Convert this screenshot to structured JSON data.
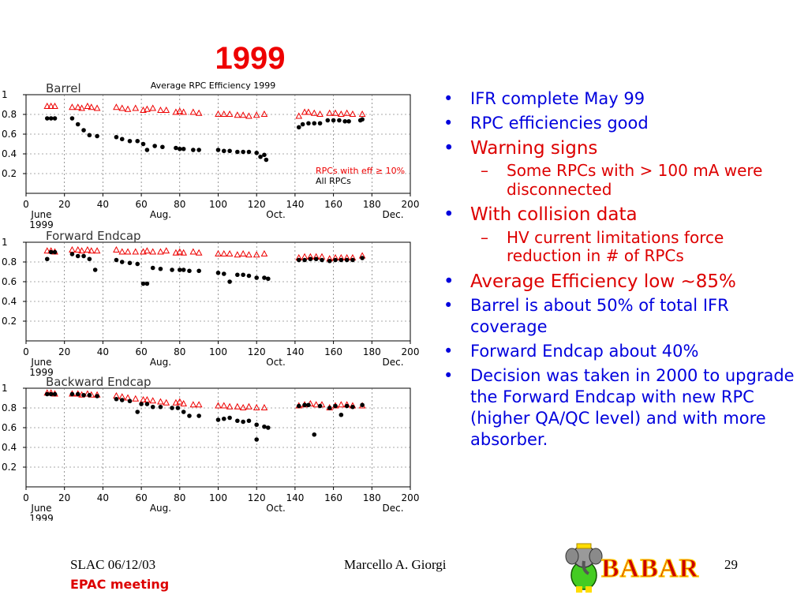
{
  "slide": {
    "title": "1999",
    "footer": {
      "left": "SLAC 06/12/03",
      "left2": "EPAC meeting",
      "center": "Marcello A. Giorgi",
      "page": "29"
    },
    "logo_text": "BABAR"
  },
  "bullets": [
    {
      "text": "IFR  complete May 99",
      "size": "b1",
      "color": "blue"
    },
    {
      "text": "RPC efficiencies good",
      "size": "b1",
      "color": "blue"
    },
    {
      "text": "Warning signs",
      "size": "b2",
      "color": "red",
      "subs": [
        "Some RPCs with > 100 mA were disconnected"
      ]
    },
    {
      "text": "With collision data",
      "size": "b2",
      "color": "red",
      "subs": [
        "HV current limitations force reduction in # of RPCs"
      ]
    },
    {
      "text": "Average Efficiency low ~85%",
      "size": "b2",
      "color": "red"
    },
    {
      "text": "Barrel is about 50% of total IFR coverage",
      "size": "b1",
      "color": "blue"
    },
    {
      "text": "Forward Endcap about 40%",
      "size": "b1",
      "color": "blue"
    },
    {
      "text": "Decision was taken in 2000 to upgrade the Forward Endcap with new RPC (higher QA/QC level) and with more absorber.",
      "size": "b1",
      "color": "blue"
    }
  ],
  "chart_data": [
    {
      "type": "scatter",
      "panel_label": "Barrel",
      "title": "Average RPC Efficiency 1999",
      "xlim": [
        0,
        200
      ],
      "ylim": [
        0,
        1
      ],
      "xticks": [
        0,
        20,
        40,
        60,
        80,
        100,
        120,
        140,
        160,
        180,
        200
      ],
      "yticks": [
        0.2,
        0.4,
        0.6,
        0.8,
        1
      ],
      "ytick_labels": [
        "0.2",
        "0.4",
        "0.6",
        "0.8",
        "1"
      ],
      "date_labels": [
        {
          "x": 8,
          "text": "June"
        },
        {
          "x": 8,
          "text": "1999",
          "row": 2
        },
        {
          "x": 70,
          "text": "Aug."
        },
        {
          "x": 130,
          "text": "Oct."
        },
        {
          "x": 191,
          "text": "Dec."
        }
      ],
      "legend": [
        "RPCs with eff ≥ 10%",
        "All RPCs"
      ],
      "series": [
        {
          "name": "RPCs with eff ≥ 10%",
          "marker": "triangle",
          "x": [
            11,
            13,
            15,
            24,
            27,
            29,
            32,
            34,
            37,
            47,
            50,
            53,
            57,
            61,
            63,
            66,
            70,
            73,
            78,
            80,
            82,
            87,
            90,
            100,
            103,
            106,
            110,
            113,
            116,
            120,
            124,
            142,
            145,
            147,
            150,
            153,
            158,
            161,
            164,
            167,
            170,
            175
          ],
          "y": [
            0.88,
            0.88,
            0.88,
            0.87,
            0.87,
            0.86,
            0.88,
            0.87,
            0.86,
            0.87,
            0.86,
            0.85,
            0.86,
            0.84,
            0.85,
            0.86,
            0.84,
            0.84,
            0.82,
            0.83,
            0.82,
            0.82,
            0.81,
            0.8,
            0.8,
            0.8,
            0.79,
            0.79,
            0.78,
            0.79,
            0.8,
            0.78,
            0.82,
            0.82,
            0.81,
            0.8,
            0.81,
            0.81,
            0.8,
            0.81,
            0.8,
            0.8
          ]
        },
        {
          "name": "All RPCs",
          "marker": "circle",
          "x": [
            11,
            13,
            15,
            24,
            27,
            30,
            33,
            37,
            47,
            50,
            54,
            58,
            61,
            63,
            67,
            71,
            78,
            80,
            82,
            87,
            90,
            100,
            103,
            106,
            110,
            113,
            116,
            120,
            122,
            124,
            125,
            142,
            144,
            147,
            150,
            153,
            157,
            160,
            163,
            166,
            168,
            174,
            175
          ],
          "y": [
            0.76,
            0.76,
            0.76,
            0.76,
            0.7,
            0.64,
            0.59,
            0.58,
            0.57,
            0.55,
            0.53,
            0.53,
            0.5,
            0.44,
            0.48,
            0.47,
            0.46,
            0.45,
            0.45,
            0.44,
            0.44,
            0.44,
            0.43,
            0.43,
            0.42,
            0.42,
            0.42,
            0.41,
            0.37,
            0.39,
            0.34,
            0.67,
            0.7,
            0.71,
            0.71,
            0.71,
            0.74,
            0.74,
            0.74,
            0.73,
            0.73,
            0.74,
            0.75
          ]
        }
      ]
    },
    {
      "type": "scatter",
      "panel_label": "Forward Endcap",
      "xlim": [
        0,
        200
      ],
      "ylim": [
        0,
        1
      ],
      "xticks": [
        0,
        20,
        40,
        60,
        80,
        100,
        120,
        140,
        160,
        180,
        200
      ],
      "yticks": [
        0.2,
        0.4,
        0.6,
        0.8,
        1
      ],
      "ytick_labels": [
        "0.2",
        "0.4",
        "0.6",
        "0.8",
        "1"
      ],
      "date_labels": [
        {
          "x": 8,
          "text": "June"
        },
        {
          "x": 8,
          "text": "1999",
          "row": 2
        },
        {
          "x": 70,
          "text": "Aug."
        },
        {
          "x": 130,
          "text": "Oct."
        },
        {
          "x": 191,
          "text": "Dec."
        }
      ],
      "series": [
        {
          "name": "RPCs with eff ≥ 10%",
          "marker": "triangle",
          "x": [
            11,
            13,
            15,
            24,
            27,
            29,
            32,
            34,
            37,
            47,
            50,
            53,
            57,
            61,
            63,
            66,
            70,
            73,
            78,
            80,
            82,
            87,
            90,
            100,
            103,
            106,
            110,
            113,
            116,
            120,
            124,
            142,
            145,
            148,
            151,
            154,
            158,
            161,
            164,
            167,
            170,
            175
          ],
          "y": [
            0.91,
            0.91,
            0.9,
            0.92,
            0.92,
            0.91,
            0.92,
            0.91,
            0.91,
            0.92,
            0.9,
            0.9,
            0.9,
            0.9,
            0.91,
            0.9,
            0.9,
            0.91,
            0.89,
            0.9,
            0.89,
            0.9,
            0.89,
            0.88,
            0.88,
            0.88,
            0.87,
            0.88,
            0.87,
            0.87,
            0.88,
            0.84,
            0.85,
            0.85,
            0.85,
            0.85,
            0.83,
            0.84,
            0.84,
            0.84,
            0.84,
            0.86
          ]
        },
        {
          "name": "All RPCs",
          "marker": "circle",
          "x": [
            11,
            13,
            15,
            24,
            27,
            30,
            33,
            36,
            47,
            50,
            54,
            58,
            61,
            63,
            66,
            70,
            76,
            80,
            82,
            85,
            90,
            100,
            103,
            106,
            110,
            113,
            116,
            120,
            124,
            126,
            142,
            145,
            148,
            151,
            154,
            158,
            161,
            164,
            167,
            170,
            175
          ],
          "y": [
            0.83,
            0.9,
            0.9,
            0.88,
            0.86,
            0.86,
            0.83,
            0.72,
            0.82,
            0.8,
            0.79,
            0.78,
            0.58,
            0.58,
            0.74,
            0.73,
            0.72,
            0.72,
            0.72,
            0.71,
            0.71,
            0.69,
            0.68,
            0.6,
            0.67,
            0.67,
            0.66,
            0.64,
            0.64,
            0.63,
            0.82,
            0.82,
            0.83,
            0.83,
            0.82,
            0.81,
            0.82,
            0.82,
            0.82,
            0.82,
            0.84
          ]
        }
      ]
    },
    {
      "type": "scatter",
      "panel_label": "Backward Endcap",
      "xlim": [
        0,
        200
      ],
      "ylim": [
        0,
        1
      ],
      "xticks": [
        0,
        20,
        40,
        60,
        80,
        100,
        120,
        140,
        160,
        180,
        200
      ],
      "yticks": [
        0.2,
        0.4,
        0.6,
        0.8,
        1
      ],
      "ytick_labels": [
        "0.2",
        "0.4",
        "0.6",
        "0.8",
        "1"
      ],
      "date_labels": [
        {
          "x": 8,
          "text": "June"
        },
        {
          "x": 8,
          "text": "1999",
          "row": 2
        },
        {
          "x": 70,
          "text": "Aug."
        },
        {
          "x": 130,
          "text": "Oct."
        },
        {
          "x": 191,
          "text": "Dec."
        }
      ],
      "series": [
        {
          "name": "RPCs with eff ≥ 10%",
          "marker": "triangle",
          "x": [
            11,
            13,
            15,
            24,
            27,
            29,
            32,
            34,
            37,
            47,
            50,
            53,
            57,
            61,
            63,
            66,
            70,
            73,
            78,
            80,
            82,
            87,
            90,
            100,
            103,
            106,
            110,
            113,
            116,
            120,
            124,
            142,
            145,
            148,
            151,
            154,
            158,
            161,
            164,
            167,
            170,
            175
          ],
          "y": [
            0.95,
            0.95,
            0.94,
            0.94,
            0.94,
            0.93,
            0.94,
            0.93,
            0.93,
            0.92,
            0.91,
            0.9,
            0.89,
            0.88,
            0.88,
            0.87,
            0.86,
            0.85,
            0.85,
            0.86,
            0.84,
            0.83,
            0.83,
            0.82,
            0.82,
            0.81,
            0.81,
            0.8,
            0.81,
            0.8,
            0.8,
            0.82,
            0.83,
            0.84,
            0.83,
            0.83,
            0.8,
            0.82,
            0.83,
            0.83,
            0.82,
            0.82
          ]
        },
        {
          "name": "All RPCs",
          "marker": "circle",
          "x": [
            11,
            13,
            15,
            24,
            27,
            30,
            33,
            37,
            47,
            50,
            54,
            58,
            60,
            63,
            66,
            70,
            76,
            79,
            82,
            85,
            90,
            100,
            103,
            106,
            110,
            113,
            116,
            120,
            120,
            124,
            126,
            142,
            145,
            147,
            150,
            153,
            158,
            161,
            164,
            167,
            170,
            175
          ],
          "y": [
            0.94,
            0.94,
            0.94,
            0.94,
            0.94,
            0.93,
            0.93,
            0.92,
            0.89,
            0.88,
            0.87,
            0.76,
            0.84,
            0.84,
            0.81,
            0.81,
            0.8,
            0.8,
            0.76,
            0.72,
            0.72,
            0.68,
            0.69,
            0.7,
            0.67,
            0.66,
            0.67,
            0.48,
            0.63,
            0.61,
            0.6,
            0.82,
            0.83,
            0.83,
            0.53,
            0.82,
            0.8,
            0.82,
            0.73,
            0.82,
            0.81,
            0.83
          ]
        }
      ]
    }
  ]
}
